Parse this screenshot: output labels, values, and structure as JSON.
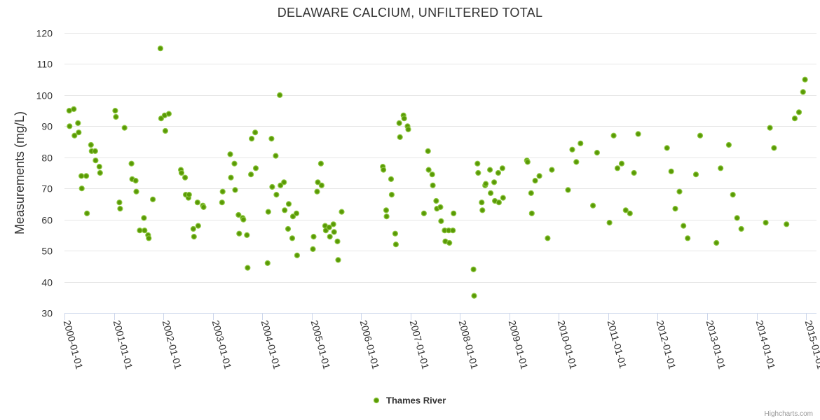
{
  "chart_data": {
    "type": "scatter",
    "title": "DELAWARE CALCIUM, UNFILTERED TOTAL",
    "xlabel": "",
    "ylabel": "Measurements (mg/L)",
    "xlim": [
      "2000-01-01",
      "2015-01-01"
    ],
    "ylim": [
      30,
      120
    ],
    "yticks": [
      30,
      40,
      50,
      60,
      70,
      80,
      90,
      100,
      110,
      120
    ],
    "xticks": [
      "2000-01-01",
      "2001-01-01",
      "2002-01-01",
      "2003-01-01",
      "2004-01-01",
      "2005-01-01",
      "2006-01-01",
      "2007-01-01",
      "2008-01-01",
      "2009-01-01",
      "2010-01-01",
      "2011-01-01",
      "2012-01-01",
      "2013-01-01",
      "2014-01-01",
      "2015-01-01"
    ],
    "grid": true,
    "legend_position": "bottom-center",
    "series": [
      {
        "name": "Thames River",
        "color": "#7cb342",
        "points": [
          {
            "x": "2000-02-05",
            "y": 95
          },
          {
            "x": "2000-02-08",
            "y": 90
          },
          {
            "x": "2000-03-10",
            "y": 95.5
          },
          {
            "x": "2000-03-15",
            "y": 87
          },
          {
            "x": "2000-04-10",
            "y": 91
          },
          {
            "x": "2000-04-15",
            "y": 88
          },
          {
            "x": "2000-05-05",
            "y": 74
          },
          {
            "x": "2000-05-08",
            "y": 70
          },
          {
            "x": "2000-06-10",
            "y": 74
          },
          {
            "x": "2000-06-15",
            "y": 62
          },
          {
            "x": "2000-07-15",
            "y": 84
          },
          {
            "x": "2000-07-20",
            "y": 82
          },
          {
            "x": "2000-08-15",
            "y": 82
          },
          {
            "x": "2000-08-18",
            "y": 79
          },
          {
            "x": "2000-09-15",
            "y": 77
          },
          {
            "x": "2000-09-20",
            "y": 75
          },
          {
            "x": "2001-01-10",
            "y": 95
          },
          {
            "x": "2001-01-15",
            "y": 93
          },
          {
            "x": "2001-02-10",
            "y": 65.5
          },
          {
            "x": "2001-02-15",
            "y": 63.5
          },
          {
            "x": "2001-03-20",
            "y": 89.5
          },
          {
            "x": "2001-05-10",
            "y": 78
          },
          {
            "x": "2001-05-15",
            "y": 73
          },
          {
            "x": "2001-06-10",
            "y": 72.5
          },
          {
            "x": "2001-06-15",
            "y": 69
          },
          {
            "x": "2001-07-10",
            "y": 56.5
          },
          {
            "x": "2001-08-10",
            "y": 60.5
          },
          {
            "x": "2001-08-15",
            "y": 56.5
          },
          {
            "x": "2001-09-10",
            "y": 55
          },
          {
            "x": "2001-09-15",
            "y": 54
          },
          {
            "x": "2001-10-15",
            "y": 66.5
          },
          {
            "x": "2001-12-10",
            "y": 115
          },
          {
            "x": "2001-12-15",
            "y": 92.5
          },
          {
            "x": "2002-01-10",
            "y": 93.5
          },
          {
            "x": "2002-01-15",
            "y": 88.5
          },
          {
            "x": "2002-02-10",
            "y": 94
          },
          {
            "x": "2002-05-10",
            "y": 76
          },
          {
            "x": "2002-05-15",
            "y": 75
          },
          {
            "x": "2002-06-10",
            "y": 73.5
          },
          {
            "x": "2002-06-15",
            "y": 68
          },
          {
            "x": "2002-07-05",
            "y": 67
          },
          {
            "x": "2002-07-10",
            "y": 68
          },
          {
            "x": "2002-08-10",
            "y": 57
          },
          {
            "x": "2002-08-15",
            "y": 54.5
          },
          {
            "x": "2002-09-10",
            "y": 65.5
          },
          {
            "x": "2002-09-15",
            "y": 58
          },
          {
            "x": "2002-10-20",
            "y": 64.5
          },
          {
            "x": "2002-10-25",
            "y": 64
          },
          {
            "x": "2003-03-10",
            "y": 65.5
          },
          {
            "x": "2003-03-15",
            "y": 69
          },
          {
            "x": "2003-05-10",
            "y": 81
          },
          {
            "x": "2003-05-15",
            "y": 73.5
          },
          {
            "x": "2003-06-10",
            "y": 78
          },
          {
            "x": "2003-06-15",
            "y": 69.5
          },
          {
            "x": "2003-07-10",
            "y": 61.5
          },
          {
            "x": "2003-07-15",
            "y": 55.5
          },
          {
            "x": "2003-08-10",
            "y": 60.5
          },
          {
            "x": "2003-08-15",
            "y": 60
          },
          {
            "x": "2003-09-10",
            "y": 55
          },
          {
            "x": "2003-09-15",
            "y": 44.5
          },
          {
            "x": "2003-10-10",
            "y": 74.5
          },
          {
            "x": "2003-10-15",
            "y": 86
          },
          {
            "x": "2003-11-10",
            "y": 88
          },
          {
            "x": "2003-11-15",
            "y": 76.5
          },
          {
            "x": "2004-02-10",
            "y": 46
          },
          {
            "x": "2004-02-15",
            "y": 62.5
          },
          {
            "x": "2004-03-10",
            "y": 86
          },
          {
            "x": "2004-03-15",
            "y": 70.5
          },
          {
            "x": "2004-04-10",
            "y": 80.5
          },
          {
            "x": "2004-04-15",
            "y": 68
          },
          {
            "x": "2004-05-10",
            "y": 100
          },
          {
            "x": "2004-05-15",
            "y": 71
          },
          {
            "x": "2004-06-10",
            "y": 72
          },
          {
            "x": "2004-06-15",
            "y": 63
          },
          {
            "x": "2004-07-10",
            "y": 57
          },
          {
            "x": "2004-07-15",
            "y": 65
          },
          {
            "x": "2004-08-10",
            "y": 54
          },
          {
            "x": "2004-08-15",
            "y": 61
          },
          {
            "x": "2004-09-10",
            "y": 62
          },
          {
            "x": "2004-09-15",
            "y": 48.5
          },
          {
            "x": "2005-01-10",
            "y": 50.5
          },
          {
            "x": "2005-01-15",
            "y": 54.5
          },
          {
            "x": "2005-02-10",
            "y": 69
          },
          {
            "x": "2005-02-15",
            "y": 72
          },
          {
            "x": "2005-03-10",
            "y": 78
          },
          {
            "x": "2005-03-15",
            "y": 71
          },
          {
            "x": "2005-04-10",
            "y": 58
          },
          {
            "x": "2005-04-15",
            "y": 56.5
          },
          {
            "x": "2005-05-10",
            "y": 57.5
          },
          {
            "x": "2005-05-15",
            "y": 54.5
          },
          {
            "x": "2005-06-10",
            "y": 58.5
          },
          {
            "x": "2005-06-15",
            "y": 56
          },
          {
            "x": "2005-07-10",
            "y": 53
          },
          {
            "x": "2005-07-15",
            "y": 47
          },
          {
            "x": "2005-08-10",
            "y": 62.5
          },
          {
            "x": "2006-06-10",
            "y": 77
          },
          {
            "x": "2006-06-15",
            "y": 76
          },
          {
            "x": "2006-07-05",
            "y": 63
          },
          {
            "x": "2006-07-08",
            "y": 61
          },
          {
            "x": "2006-08-10",
            "y": 73
          },
          {
            "x": "2006-08-15",
            "y": 68
          },
          {
            "x": "2006-09-10",
            "y": 55.5
          },
          {
            "x": "2006-09-15",
            "y": 52
          },
          {
            "x": "2006-10-10",
            "y": 91
          },
          {
            "x": "2006-10-15",
            "y": 86.5
          },
          {
            "x": "2006-11-10",
            "y": 93.5
          },
          {
            "x": "2006-11-15",
            "y": 92.5
          },
          {
            "x": "2006-12-10",
            "y": 90
          },
          {
            "x": "2006-12-15",
            "y": 89
          },
          {
            "x": "2007-04-10",
            "y": 62
          },
          {
            "x": "2007-05-10",
            "y": 82
          },
          {
            "x": "2007-05-15",
            "y": 76
          },
          {
            "x": "2007-06-10",
            "y": 74.5
          },
          {
            "x": "2007-06-15",
            "y": 71
          },
          {
            "x": "2007-07-10",
            "y": 66
          },
          {
            "x": "2007-07-15",
            "y": 63.5
          },
          {
            "x": "2007-08-10",
            "y": 64
          },
          {
            "x": "2007-08-15",
            "y": 59.5
          },
          {
            "x": "2007-09-10",
            "y": 56.5
          },
          {
            "x": "2007-09-15",
            "y": 53
          },
          {
            "x": "2007-10-10",
            "y": 56.5
          },
          {
            "x": "2007-10-15",
            "y": 52.5
          },
          {
            "x": "2007-11-10",
            "y": 56.5
          },
          {
            "x": "2007-11-15",
            "y": 62
          },
          {
            "x": "2008-04-10",
            "y": 44
          },
          {
            "x": "2008-04-15",
            "y": 35.5
          },
          {
            "x": "2008-05-10",
            "y": 78
          },
          {
            "x": "2008-05-15",
            "y": 75
          },
          {
            "x": "2008-06-10",
            "y": 65.5
          },
          {
            "x": "2008-06-15",
            "y": 63
          },
          {
            "x": "2008-07-05",
            "y": 71
          },
          {
            "x": "2008-07-10",
            "y": 71.5
          },
          {
            "x": "2008-08-10",
            "y": 76
          },
          {
            "x": "2008-08-15",
            "y": 68.5
          },
          {
            "x": "2008-09-10",
            "y": 72
          },
          {
            "x": "2008-09-15",
            "y": 66
          },
          {
            "x": "2008-10-10",
            "y": 75
          },
          {
            "x": "2008-10-15",
            "y": 65.5
          },
          {
            "x": "2008-11-10",
            "y": 76.5
          },
          {
            "x": "2008-11-15",
            "y": 67
          },
          {
            "x": "2009-05-10",
            "y": 79
          },
          {
            "x": "2009-05-15",
            "y": 78.5
          },
          {
            "x": "2009-06-10",
            "y": 68.5
          },
          {
            "x": "2009-06-15",
            "y": 62
          },
          {
            "x": "2009-07-10",
            "y": 72.5
          },
          {
            "x": "2009-08-10",
            "y": 74
          },
          {
            "x": "2009-10-10",
            "y": 54
          },
          {
            "x": "2009-11-10",
            "y": 76
          },
          {
            "x": "2010-03-10",
            "y": 69.5
          },
          {
            "x": "2010-04-10",
            "y": 82.5
          },
          {
            "x": "2010-05-10",
            "y": 78.5
          },
          {
            "x": "2010-06-10",
            "y": 84.5
          },
          {
            "x": "2010-09-10",
            "y": 64.5
          },
          {
            "x": "2010-10-10",
            "y": 81.5
          },
          {
            "x": "2011-01-10",
            "y": 59
          },
          {
            "x": "2011-02-10",
            "y": 87
          },
          {
            "x": "2011-03-10",
            "y": 76.5
          },
          {
            "x": "2011-04-10",
            "y": 78
          },
          {
            "x": "2011-05-10",
            "y": 63
          },
          {
            "x": "2011-06-10",
            "y": 62
          },
          {
            "x": "2011-07-10",
            "y": 75
          },
          {
            "x": "2011-08-10",
            "y": 87.5
          },
          {
            "x": "2012-03-10",
            "y": 83
          },
          {
            "x": "2012-04-10",
            "y": 75.5
          },
          {
            "x": "2012-05-10",
            "y": 63.5
          },
          {
            "x": "2012-06-10",
            "y": 69
          },
          {
            "x": "2012-07-10",
            "y": 58
          },
          {
            "x": "2012-08-10",
            "y": 54
          },
          {
            "x": "2012-10-10",
            "y": 74.5
          },
          {
            "x": "2012-11-10",
            "y": 87
          },
          {
            "x": "2013-03-10",
            "y": 52.5
          },
          {
            "x": "2013-04-10",
            "y": 76.5
          },
          {
            "x": "2013-06-10",
            "y": 84
          },
          {
            "x": "2013-07-10",
            "y": 68
          },
          {
            "x": "2013-08-10",
            "y": 60.5
          },
          {
            "x": "2013-09-10",
            "y": 57
          },
          {
            "x": "2014-03-10",
            "y": 59
          },
          {
            "x": "2014-04-10",
            "y": 89.5
          },
          {
            "x": "2014-05-10",
            "y": 83
          },
          {
            "x": "2014-08-10",
            "y": 58.5
          },
          {
            "x": "2014-10-10",
            "y": 92.5
          },
          {
            "x": "2014-11-10",
            "y": 94.5
          },
          {
            "x": "2014-12-10",
            "y": 101
          },
          {
            "x": "2014-12-25",
            "y": 105
          }
        ]
      }
    ]
  },
  "credits": "Highcharts.com"
}
